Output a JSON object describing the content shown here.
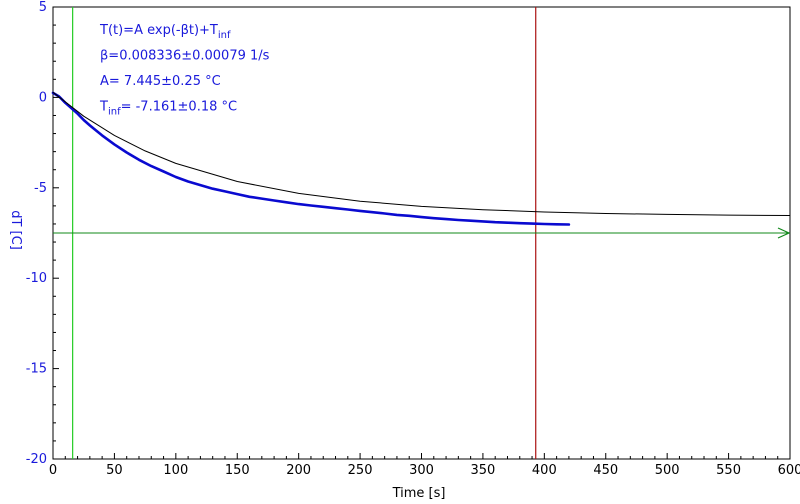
{
  "chart_data": {
    "type": "line",
    "xlabel": "Time [s]",
    "ylabel": "dT [C]",
    "xlim": [
      0,
      600
    ],
    "ylim": [
      -20,
      5
    ],
    "x_ticks": [
      0,
      50,
      100,
      150,
      200,
      250,
      300,
      350,
      400,
      450,
      500,
      550,
      600
    ],
    "y_ticks": [
      5,
      0,
      -5,
      -10,
      -15,
      -20
    ],
    "grid": false,
    "series": [
      {
        "kind": "measured",
        "x": [
          0,
          5,
          10,
          15,
          20,
          25,
          30,
          40,
          50,
          60,
          70,
          80,
          90,
          100,
          110,
          120,
          130,
          140,
          150,
          160,
          170,
          180,
          190,
          200,
          210,
          220,
          230,
          240,
          250,
          260,
          270,
          280,
          290,
          300,
          310,
          320,
          330,
          340,
          350,
          360,
          370,
          380,
          390,
          400,
          410,
          420
        ],
        "y": [
          0.25,
          0.05,
          -0.3,
          -0.6,
          -0.9,
          -1.25,
          -1.55,
          -2.1,
          -2.6,
          -3.05,
          -3.45,
          -3.8,
          -4.1,
          -4.4,
          -4.65,
          -4.85,
          -5.05,
          -5.2,
          -5.35,
          -5.5,
          -5.6,
          -5.7,
          -5.8,
          -5.9,
          -5.98,
          -6.05,
          -6.13,
          -6.2,
          -6.28,
          -6.35,
          -6.42,
          -6.5,
          -6.55,
          -6.62,
          -6.68,
          -6.73,
          -6.78,
          -6.82,
          -6.86,
          -6.9,
          -6.93,
          -6.96,
          -6.98,
          -7.0,
          -7.02,
          -7.03
        ],
        "color": "#0a0ad0"
      },
      {
        "kind": "fit",
        "x": [
          0,
          25,
          50,
          75,
          100,
          150,
          200,
          250,
          300,
          350,
          400,
          450,
          500,
          550,
          600
        ],
        "y": [
          0.28,
          -1.04,
          -2.1,
          -2.96,
          -3.65,
          -4.65,
          -5.31,
          -5.74,
          -6.03,
          -6.21,
          -6.34,
          -6.42,
          -6.47,
          -6.51,
          -6.53
        ],
        "color": "#000000"
      }
    ],
    "markers": {
      "left_x": 16,
      "right_x": 393,
      "asymptote_y": -7.5,
      "left_color": "#22cc22",
      "right_color": "#aa1111",
      "asymptote_color": "#11881a"
    },
    "annotations": [
      {
        "main": "T(t)=A exp(-βt)+T",
        "sub": "inf",
        "tail": ""
      },
      {
        "main": "β=0.008336±0.00079 1/s",
        "sub": "",
        "tail": ""
      },
      {
        "main": "A= 7.445±0.25 °C",
        "sub": "",
        "tail": ""
      },
      {
        "main": "T",
        "sub": "inf",
        "tail": "= -7.161±0.18 °C"
      }
    ],
    "colors": {
      "axis": "#000000",
      "ytick_labels": "#1a1adb",
      "ylabel": "#1a1adb"
    }
  }
}
